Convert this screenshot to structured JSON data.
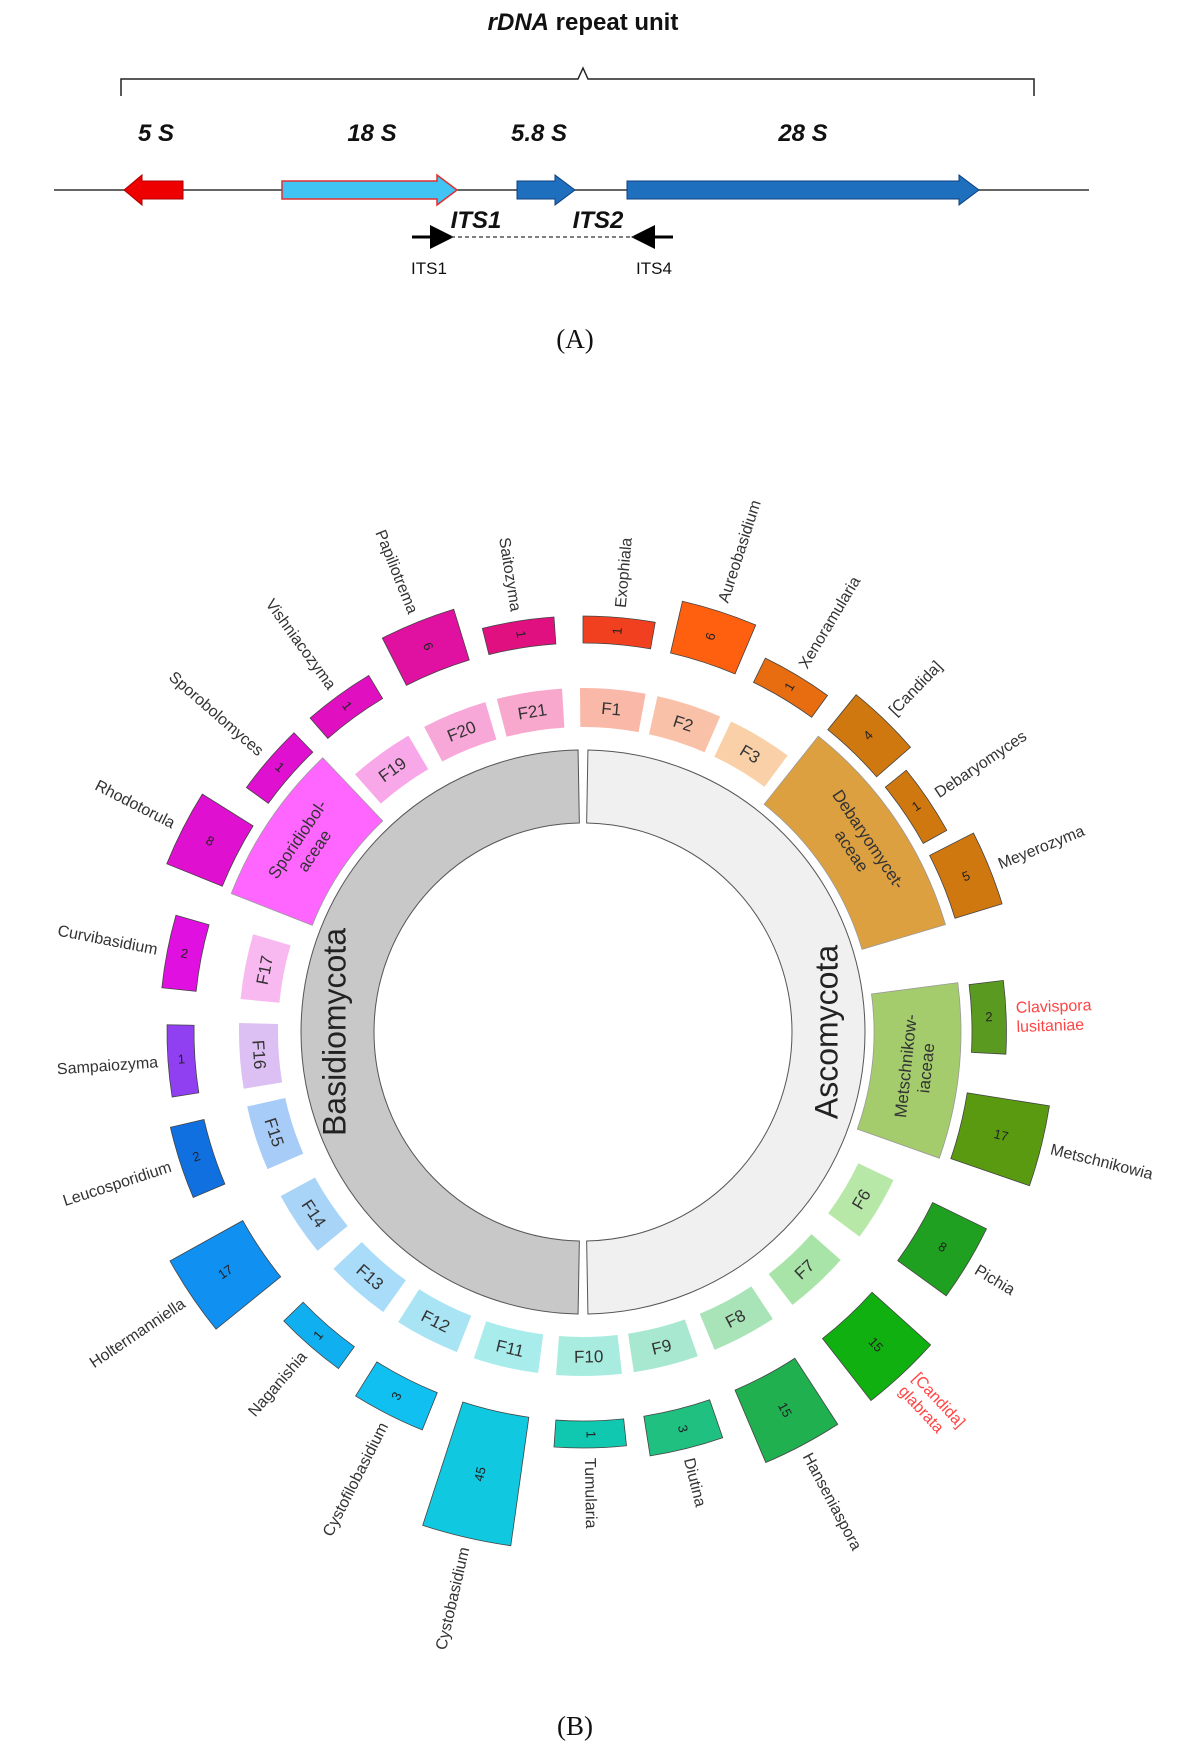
{
  "panel_a": {
    "title_italic": "rDNA",
    "title_rest": "repeat unit",
    "genes": [
      "5 S",
      "18 S",
      "5.8 S",
      "28 S"
    ],
    "regions": [
      "ITS1",
      "ITS2"
    ],
    "primers": [
      "ITS1",
      "ITS4"
    ],
    "label": "(A)"
  },
  "panel_b": {
    "label": "(B)",
    "phyla": [
      {
        "name": "Ascomycota",
        "color": "#f0f0f0",
        "families": [
          {
            "label": [
              "F1"
            ],
            "color": "#f9b8a8",
            "genera": [
              {
                "name": [
                  "Exophiala"
                ],
                "count": 1,
                "color": "#f04020"
              }
            ]
          },
          {
            "label": [
              "F2"
            ],
            "color": "#f9c2a8",
            "genera": [
              {
                "name": [
                  "Aureobasidium"
                ],
                "count": 6,
                "color": "#ff6010"
              }
            ]
          },
          {
            "label": [
              "F3"
            ],
            "color": "#f9d0a8",
            "genera": [
              {
                "name": [
                  "Xenoramularia"
                ],
                "count": 1,
                "color": "#e86c10"
              }
            ]
          },
          {
            "label": [
              "Debaryomycet-",
              "aceae"
            ],
            "color": "#dda040",
            "genera": [
              {
                "name": [
                  "[Candida]"
                ],
                "count": 4,
                "color": "#d07810"
              },
              {
                "name": [
                  "Debaryomyces"
                ],
                "count": 1,
                "color": "#d07810"
              },
              {
                "name": [
                  "Meyerozyma"
                ],
                "count": 5,
                "color": "#d07810"
              }
            ]
          },
          {
            "label": [
              "Metschnikow-",
              "iaceae"
            ],
            "color": "#a4cc6c",
            "genera": [
              {
                "name": [
                  "Clavispora",
                  "lusitaniae"
                ],
                "count": 2,
                "color": "#5a9a20",
                "label_color": "#ff4444"
              },
              {
                "name": [
                  "Metschnikowia"
                ],
                "count": 17,
                "color": "#5a9a10"
              }
            ]
          },
          {
            "label": [
              "F6"
            ],
            "color": "#b8e8a8",
            "genera": [
              {
                "name": [
                  "Pichia"
                ],
                "count": 8,
                "color": "#20a020"
              }
            ]
          },
          {
            "label": [
              "F7"
            ],
            "color": "#a8e4a8",
            "genera": [
              {
                "name": [
                  "[Candida]",
                  "glabrata"
                ],
                "count": 15,
                "color": "#10b010",
                "label_color": "#ff4444"
              }
            ]
          },
          {
            "label": [
              "F8"
            ],
            "color": "#a8e4b8",
            "genera": [
              {
                "name": [
                  "Hanseniaspora"
                ],
                "count": 15,
                "color": "#20b050"
              }
            ]
          },
          {
            "label": [
              "F9"
            ],
            "color": "#a8e8d0",
            "genera": [
              {
                "name": [
                  "Diutina"
                ],
                "count": 3,
                "color": "#20c080"
              }
            ]
          },
          {
            "label": [
              "F10"
            ],
            "color": "#a8ece0",
            "genera": [
              {
                "name": [
                  "Tumularia"
                ],
                "count": 1,
                "color": "#10c8b0"
              }
            ]
          }
        ]
      },
      {
        "name": "Basidiomycota",
        "color": "#c8c8c8",
        "families": [
          {
            "label": [
              "F11"
            ],
            "color": "#a8ecec",
            "genera": [
              {
                "name": [
                  "Cystobasidium"
                ],
                "count": 45,
                "color": "#10c8e0"
              }
            ]
          },
          {
            "label": [
              "F12"
            ],
            "color": "#a8e4f4",
            "genera": [
              {
                "name": [
                  "Cystofilobasidium"
                ],
                "count": 3,
                "color": "#10c0f0"
              }
            ]
          },
          {
            "label": [
              "F13"
            ],
            "color": "#a8dcf8",
            "genera": [
              {
                "name": [
                  "Naganishia"
                ],
                "count": 1,
                "color": "#10b0f0"
              }
            ]
          },
          {
            "label": [
              "F14"
            ],
            "color": "#a8d4f8",
            "genera": [
              {
                "name": [
                  "Holtermanniella"
                ],
                "count": 17,
                "color": "#1090f0"
              }
            ]
          },
          {
            "label": [
              "F15"
            ],
            "color": "#a8ccf8",
            "genera": [
              {
                "name": [
                  "Leucosporidium"
                ],
                "count": 2,
                "color": "#1070e0"
              }
            ]
          },
          {
            "label": [
              "F16"
            ],
            "color": "#dcc0f4",
            "genera": [
              {
                "name": [
                  "Sampaiozyma"
                ],
                "count": 1,
                "color": "#9040f0"
              }
            ]
          },
          {
            "label": [
              "F17"
            ],
            "color": "#f8b8f0",
            "genera": [
              {
                "name": [
                  "Curvibasidium"
                ],
                "count": 2,
                "color": "#e010e0"
              }
            ]
          },
          {
            "label": [
              "Sporidiobol-",
              "aceae"
            ],
            "color": "#ff66ff",
            "genera": [
              {
                "name": [
                  "Rhodotorula"
                ],
                "count": 8,
                "color": "#e010d0"
              },
              {
                "name": [
                  "Sporobolomyces"
                ],
                "count": 1,
                "color": "#e010d0"
              }
            ]
          },
          {
            "label": [
              "F19"
            ],
            "color": "#f8a8e8",
            "genera": [
              {
                "name": [
                  "Vishniacozyma"
                ],
                "count": 1,
                "color": "#e010c0"
              }
            ]
          },
          {
            "label": [
              "F20"
            ],
            "color": "#f8a8d8",
            "genera": [
              {
                "name": [
                  "Papiliotrema"
                ],
                "count": 6,
                "color": "#e010a0"
              }
            ]
          },
          {
            "label": [
              "F21"
            ],
            "color": "#f8a8cc",
            "genera": [
              {
                "name": [
                  "Saitozyma"
                ],
                "count": 1,
                "color": "#e01080"
              }
            ]
          }
        ]
      }
    ]
  }
}
